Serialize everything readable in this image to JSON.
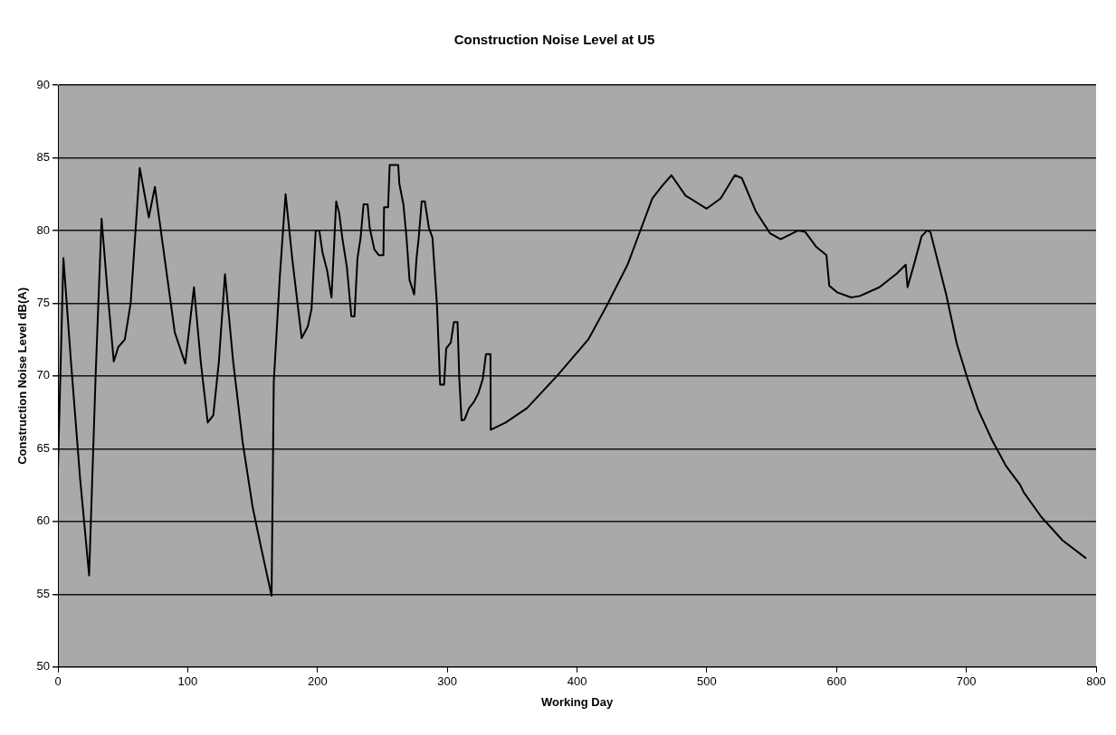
{
  "chart_data": {
    "type": "line",
    "title": "Construction Noise Level at U5",
    "xlabel": "Working Day",
    "ylabel": "Construction Noise Level dB(A)",
    "xlim": [
      0,
      800
    ],
    "xticks": [
      0,
      100,
      200,
      300,
      400,
      500,
      600,
      700,
      800
    ],
    "ylim": [
      50,
      90
    ],
    "yticks": [
      50,
      55,
      60,
      65,
      70,
      75,
      80,
      85,
      90
    ],
    "grid": "y",
    "legend": false,
    "marker": "none",
    "line_style": "solid",
    "series": [
      {
        "color": "#000000",
        "x": [
          0,
          4.2,
          10,
          17,
          24,
          29,
          33.6,
          38,
          43,
          46.5,
          51.5,
          56,
          63,
          70,
          74.7,
          81.4,
          90,
          98.1,
          104.8,
          110,
          115.4,
          119.7,
          124,
          128.7,
          135,
          142.4,
          150,
          156.8,
          164.6,
          166.3,
          171,
          175.4,
          180.6,
          187.8,
          192.5,
          195.4,
          198.6,
          201.4,
          203.8,
          207.3,
          210.8,
          214.4,
          216.7,
          219.1,
          222.6,
          226.1,
          228.5,
          230.8,
          233.2,
          235.5,
          238.6,
          240.2,
          243.8,
          247.3,
          250.8,
          251.3,
          254.4,
          255.6,
          262.2,
          263.1,
          266.2,
          268.6,
          270.9,
          274.5,
          276.3,
          278,
          280.3,
          282.7,
          285.8,
          288.6,
          292.1,
          294.5,
          297.5,
          299.2,
          302.7,
          305.1,
          307.9,
          309.3,
          311,
          313.3,
          316.8,
          320.4,
          323.9,
          327.4,
          329.8,
          333.3,
          333.5,
          345,
          361.5,
          385,
          408.6,
          422.7,
          439.2,
          448.6,
          458,
          465,
          472.7,
          483.6,
          499.9,
          510.7,
          521.6,
          527,
          537.9,
          548.8,
          556.9,
          570.5,
          575.9,
          584.1,
          592.2,
          594.4,
          600.4,
          611.2,
          618,
          633,
          646.5,
          653.3,
          654.7,
          660.1,
          665.5,
          667.7,
          669.6,
          672.3,
          684.5,
          692.7,
          700.8,
          709,
          719.8,
          730.7,
          741.6,
          744.3,
          757.9,
          774.2,
          791.9
        ],
        "values": [
          63.7,
          78.1,
          71,
          63,
          56.3,
          70,
          80.8,
          76,
          71,
          72,
          72.5,
          75,
          84.3,
          80.9,
          83,
          78.6,
          73,
          70.85,
          76.1,
          71,
          66.8,
          67.3,
          71,
          77,
          71,
          65.4,
          61,
          58.1,
          54.9,
          69.6,
          76.9,
          82.5,
          78,
          72.6,
          73.4,
          74.6,
          80,
          80,
          78.5,
          77.3,
          75.4,
          82,
          81.2,
          79.5,
          77.5,
          74.1,
          74.1,
          78.1,
          79.5,
          81.8,
          81.8,
          80.2,
          78.7,
          78.3,
          78.3,
          81.6,
          81.6,
          84.5,
          84.5,
          83.2,
          81.8,
          79.5,
          76.6,
          75.6,
          78.1,
          79.5,
          82,
          82,
          80.2,
          79.5,
          74.8,
          69.4,
          69.4,
          71.9,
          72.3,
          73.7,
          73.7,
          69.8,
          66.95,
          67,
          67.8,
          68.2,
          68.8,
          69.8,
          71.5,
          71.5,
          66.3,
          66.8,
          67.8,
          70.05,
          72.5,
          74.8,
          77.7,
          79.95,
          82.2,
          83,
          83.8,
          82.4,
          81.5,
          82.2,
          83.8,
          83.6,
          81.3,
          79.8,
          79.4,
          80,
          79.9,
          78.9,
          78.3,
          76.2,
          75.75,
          75.4,
          75.5,
          76.1,
          77.05,
          77.65,
          76.1,
          77.8,
          79.6,
          79.8,
          80,
          79.9,
          75.6,
          72.2,
          69.85,
          67.7,
          65.6,
          63.8,
          62.5,
          62,
          60.3,
          58.7,
          57.5
        ]
      }
    ]
  }
}
